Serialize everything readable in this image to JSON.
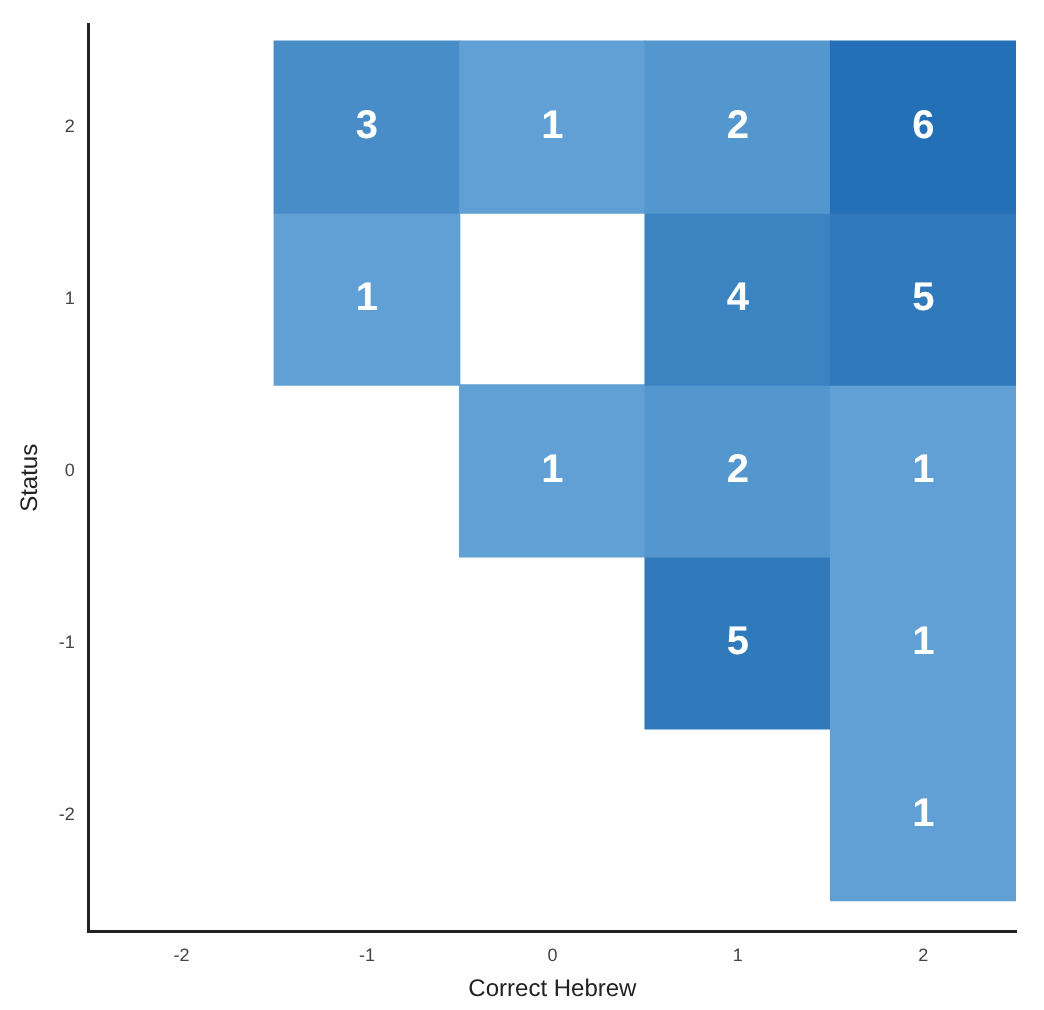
{
  "chart_data": {
    "type": "heatmap",
    "xlabel": "Correct Hebrew",
    "ylabel": "Status",
    "categories": [
      "-2",
      "-1",
      "0",
      "1",
      "2"
    ],
    "y_categories": [
      "2",
      "1",
      "0",
      "-1",
      "-2"
    ],
    "cells": [
      [
        null,
        3,
        1,
        2,
        6
      ],
      [
        null,
        1,
        null,
        4,
        5
      ],
      [
        null,
        null,
        1,
        2,
        1
      ],
      [
        null,
        null,
        null,
        5,
        1
      ],
      [
        null,
        null,
        null,
        null,
        1
      ]
    ],
    "data_labels": true,
    "grid": false,
    "legend": false
  }
}
